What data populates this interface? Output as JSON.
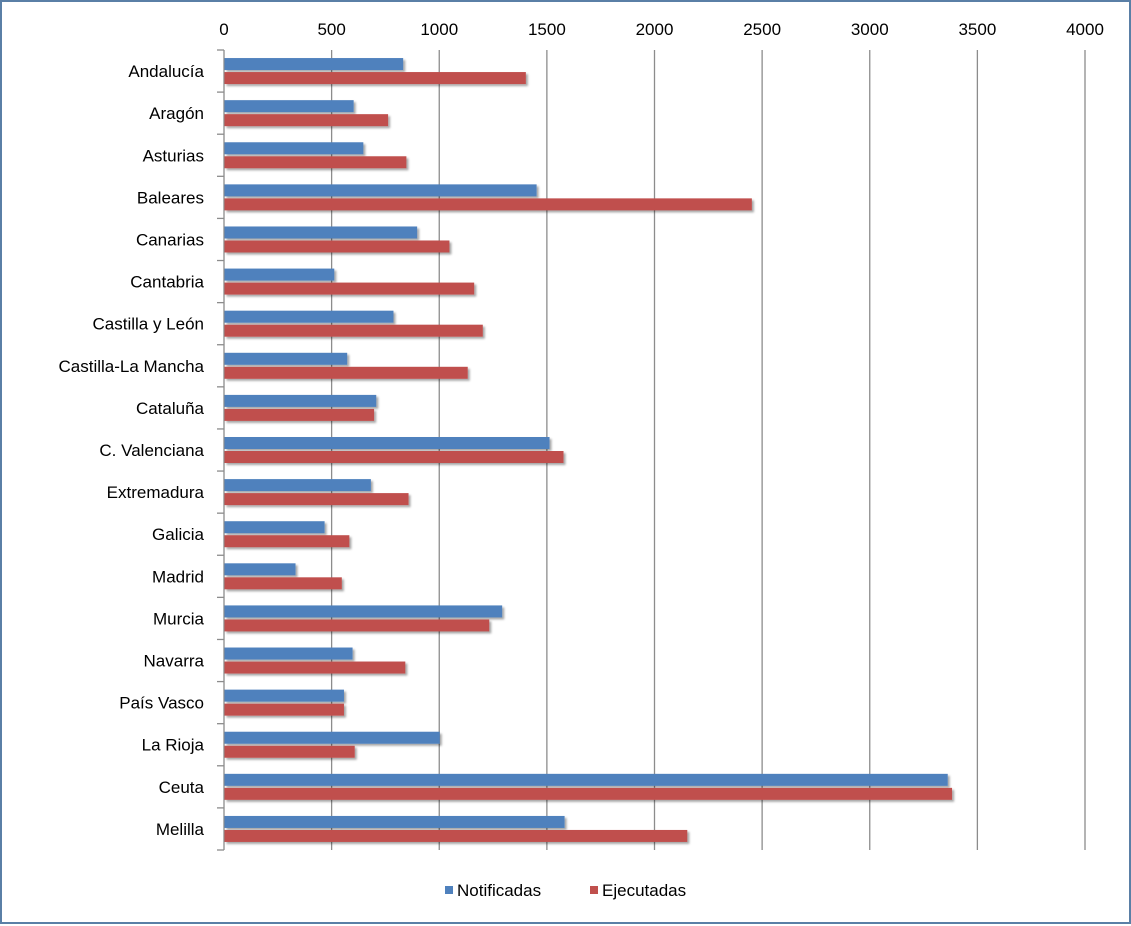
{
  "chart_data": {
    "type": "bar",
    "orientation": "horizontal",
    "categories": [
      "Andalucía",
      "Aragón",
      "Asturias",
      "Baleares",
      "Canarias",
      "Cantabria",
      "Castilla y León",
      "Castilla-La Mancha",
      "Cataluña",
      "C. Valenciana",
      "Extremadura",
      "Galicia",
      "Madrid",
      "Murcia",
      "Navarra",
      "País Vasco",
      "La Rioja",
      "Ceuta",
      "Melilla"
    ],
    "series": [
      {
        "name": "Notificadas",
        "color": "#4f81bd",
        "values": [
          830,
          600,
          645,
          1450,
          895,
          510,
          785,
          570,
          705,
          1510,
          680,
          465,
          330,
          1290,
          595,
          555,
          1000,
          3360,
          1580
        ]
      },
      {
        "name": "Ejecutadas",
        "color": "#c0504d",
        "values": [
          1400,
          760,
          845,
          2450,
          1045,
          1160,
          1200,
          1130,
          695,
          1575,
          855,
          580,
          545,
          1230,
          840,
          555,
          605,
          3380,
          2150
        ]
      }
    ],
    "xlim": [
      0,
      4000
    ],
    "x_ticks": [
      "0",
      "500",
      "1000",
      "1500",
      "2000",
      "2500",
      "3000",
      "3500",
      "4000"
    ],
    "x_axis_position": "top",
    "grid": true,
    "legend": "bottom"
  }
}
